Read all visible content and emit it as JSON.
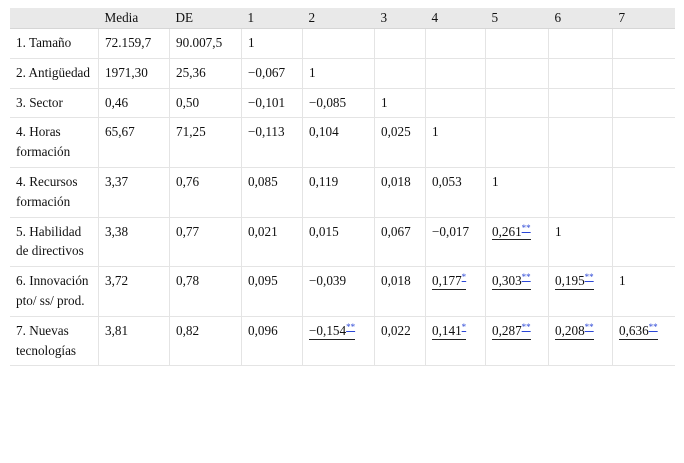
{
  "table": {
    "headers": [
      "",
      "Media",
      "DE",
      "1",
      "2",
      "3",
      "4",
      "5",
      "6",
      "7"
    ],
    "rows": [
      {
        "label": "1. Tamaño",
        "cells": [
          {
            "v": "72.159,7"
          },
          {
            "v": "90.007,5"
          },
          {
            "v": "1"
          },
          {
            "v": ""
          },
          {
            "v": ""
          },
          {
            "v": ""
          },
          {
            "v": ""
          },
          {
            "v": ""
          },
          {
            "v": ""
          }
        ]
      },
      {
        "label": "2. Antigüedad",
        "cells": [
          {
            "v": "1971,30"
          },
          {
            "v": "25,36"
          },
          {
            "v": "−0,067"
          },
          {
            "v": "1"
          },
          {
            "v": ""
          },
          {
            "v": ""
          },
          {
            "v": ""
          },
          {
            "v": ""
          },
          {
            "v": ""
          }
        ]
      },
      {
        "label": "3. Sector",
        "cells": [
          {
            "v": "0,46"
          },
          {
            "v": "0,50"
          },
          {
            "v": "−0,101"
          },
          {
            "v": "−0,085"
          },
          {
            "v": "1"
          },
          {
            "v": ""
          },
          {
            "v": ""
          },
          {
            "v": ""
          },
          {
            "v": ""
          }
        ]
      },
      {
        "label": "4. Horas formación",
        "cells": [
          {
            "v": "65,67"
          },
          {
            "v": "71,25"
          },
          {
            "v": "−0,113"
          },
          {
            "v": "0,104"
          },
          {
            "v": "0,025"
          },
          {
            "v": "1"
          },
          {
            "v": ""
          },
          {
            "v": ""
          },
          {
            "v": ""
          }
        ]
      },
      {
        "label": "4. Recursos formación",
        "cells": [
          {
            "v": "3,37"
          },
          {
            "v": "0,76"
          },
          {
            "v": "0,085"
          },
          {
            "v": "0,119"
          },
          {
            "v": "0,018"
          },
          {
            "v": "0,053"
          },
          {
            "v": "1"
          },
          {
            "v": ""
          },
          {
            "v": ""
          }
        ]
      },
      {
        "label": "5. Habilidad de directivos",
        "cells": [
          {
            "v": "3,38"
          },
          {
            "v": "0,77"
          },
          {
            "v": "0,021"
          },
          {
            "v": "0,015"
          },
          {
            "v": "0,067"
          },
          {
            "v": "−0,017"
          },
          {
            "v": "0,261",
            "s": "**"
          },
          {
            "v": "1"
          },
          {
            "v": ""
          }
        ]
      },
      {
        "label": "6. Innovación pto/ ss/ prod.",
        "cells": [
          {
            "v": "3,72"
          },
          {
            "v": "0,78"
          },
          {
            "v": "0,095"
          },
          {
            "v": "−0,039"
          },
          {
            "v": "0,018"
          },
          {
            "v": "0,177",
            "s": "*"
          },
          {
            "v": "0,303",
            "s": "**"
          },
          {
            "v": "0,195",
            "s": "**"
          },
          {
            "v": "1"
          }
        ]
      },
      {
        "label": "7. Nuevas tecnologías",
        "cells": [
          {
            "v": "3,81"
          },
          {
            "v": "0,82"
          },
          {
            "v": "0,096"
          },
          {
            "v": "−0,154",
            "s": "**"
          },
          {
            "v": "0,022"
          },
          {
            "v": "0,141",
            "s": "*"
          },
          {
            "v": "0,287",
            "s": "**"
          },
          {
            "v": "0,208",
            "s": "**"
          },
          {
            "v": "0,636",
            "s": "**"
          }
        ]
      }
    ]
  },
  "colors": {
    "header_bg": "#e9e9e9",
    "link": "#2a46d6",
    "grid": "#e4e4e4"
  }
}
